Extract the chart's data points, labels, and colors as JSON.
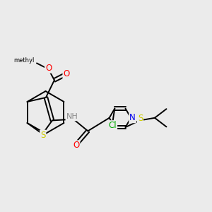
{
  "background_color": "#ebebeb",
  "line_color": "black",
  "line_width": 1.4,
  "atom_colors": {
    "S": "#cccc00",
    "N": "#0000ee",
    "O": "#ff0000",
    "Cl": "#00aa00",
    "C": "black",
    "H": "#888888"
  },
  "font_size_atoms": 8.5,
  "font_size_small": 7.0,
  "figsize": [
    3.0,
    3.0
  ],
  "dpi": 100,
  "xlim": [
    0,
    10
  ],
  "ylim": [
    0,
    10
  ]
}
